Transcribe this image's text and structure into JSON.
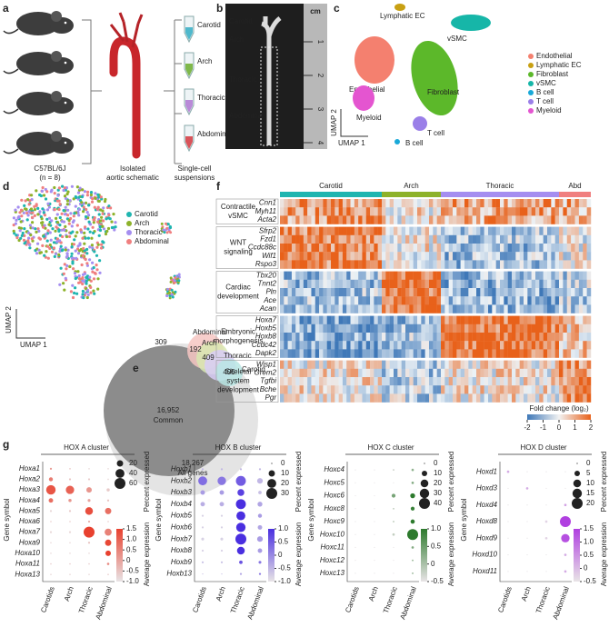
{
  "panel_a": {
    "label": "a",
    "tubes": [
      {
        "name": "Carotid",
        "color": "#4fb8cc"
      },
      {
        "name": "Arch",
        "color": "#7fb84a"
      },
      {
        "name": "Thoracic",
        "color": "#b98ad8"
      },
      {
        "name": "Abdominal",
        "color": "#d9545a"
      }
    ],
    "mouse_strain": "C57BL/6J",
    "mouse_n": "(n = 8)",
    "schematic_caption": [
      "Isolated",
      "aortic schematic"
    ],
    "suspension_caption": [
      "Single-cell",
      "suspensions"
    ]
  },
  "panel_b": {
    "label": "b",
    "regions": [
      "Carotid",
      "Arch",
      "Thoracic",
      "Abdominal"
    ],
    "ruler_unit": "cm",
    "ruler_marks": [
      1,
      2,
      3,
      4
    ]
  },
  "panel_c": {
    "label": "c",
    "x_axis": "UMAP 1",
    "y_axis": "UMAP 2",
    "clusters": [
      {
        "name": "Endothelial",
        "color": "#f4806f"
      },
      {
        "name": "Lymphatic EC",
        "color": "#c8a013"
      },
      {
        "name": "Fibroblast",
        "color": "#5cb82a"
      },
      {
        "name": "vSMC",
        "color": "#16b6a8"
      },
      {
        "name": "B cell",
        "color": "#19a9d8"
      },
      {
        "name": "T cell",
        "color": "#9a7fe8"
      },
      {
        "name": "Myeloid",
        "color": "#e455d0"
      }
    ]
  },
  "panel_d": {
    "label": "d",
    "x_axis": "UMAP 1",
    "y_axis": "UMAP 2",
    "groups": [
      {
        "name": "Carotid",
        "color": "#1fb5b0"
      },
      {
        "name": "Arch",
        "color": "#8db22a"
      },
      {
        "name": "Thoracic",
        "color": "#a58ef0"
      },
      {
        "name": "Abdominal",
        "color": "#f07f7f"
      }
    ]
  },
  "panel_e": {
    "label": "e",
    "sets": [
      {
        "name": "Abdominal",
        "count": 309,
        "color": "#f6c6c2"
      },
      {
        "name": "Arch",
        "count": 192,
        "color": "#d8e8b0"
      },
      {
        "name": "Thoracic",
        "count": 409,
        "color": "#d8cdf6"
      },
      {
        "name": "Carotid",
        "count": 405,
        "color": "#b8e6e4"
      }
    ],
    "common": {
      "count": "16,952",
      "label": "Common"
    },
    "all": {
      "count": "18,267",
      "label": "All genes"
    }
  },
  "panel_f": {
    "label": "f",
    "columns": [
      {
        "name": "Carotid",
        "color": "#1fb5b0"
      },
      {
        "name": "Arch",
        "color": "#8db22a"
      },
      {
        "name": "Thoracic",
        "color": "#a58ef0"
      },
      {
        "name": "Abd",
        "color": "#f07f7f"
      }
    ],
    "modules": [
      {
        "name": [
          "Contractile",
          "vSMC"
        ],
        "genes": [
          {
            "name": "Cnn1",
            "color": "#555555"
          },
          {
            "name": "Myh11",
            "color": "#555555"
          },
          {
            "name": "Acta2",
            "color": "#555555"
          }
        ]
      },
      {
        "name": [
          "WNT",
          "signaling"
        ],
        "genes": [
          {
            "name": "Sfrp2",
            "color": "#555555"
          },
          {
            "name": "Fzd1",
            "color": "#555555"
          },
          {
            "name": "Ccdc88c",
            "color": "#555555"
          },
          {
            "name": "Wif1",
            "color": "#e0301e"
          },
          {
            "name": "Rspo3",
            "color": "#e0301e"
          }
        ]
      },
      {
        "name": [
          "Cardiac",
          "development"
        ],
        "genes": [
          {
            "name": "Tbx20",
            "color": "#555555"
          },
          {
            "name": "Tnnt2",
            "color": "#555555"
          },
          {
            "name": "Pln",
            "color": "#555555"
          },
          {
            "name": "Ace",
            "color": "#e0301e"
          },
          {
            "name": "Acan",
            "color": "#e0301e"
          }
        ]
      },
      {
        "name": [
          "Embryonic",
          "morphogenesis"
        ],
        "genes": [
          {
            "name": "Hoxa7",
            "color": "#555555"
          },
          {
            "name": "Hoxb5",
            "color": "#555555"
          },
          {
            "name": "Hoxb8",
            "color": "#555555"
          },
          {
            "name": "Ccdc42",
            "color": "#e0301e"
          },
          {
            "name": "Dapk2",
            "color": "#e0301e"
          }
        ]
      },
      {
        "name": [
          "Skeletal",
          "system",
          "development"
        ],
        "genes": [
          {
            "name": "Wisp1",
            "color": "#555555"
          },
          {
            "name": "Grem2",
            "color": "#555555"
          },
          {
            "name": "Tgfbi",
            "color": "#555555"
          },
          {
            "name": "Bche",
            "color": "#e0301e"
          },
          {
            "name": "Pgr",
            "color": "#e0301e"
          }
        ]
      }
    ],
    "colorbar": {
      "label": "Fold change (log₂)",
      "ticks": [
        -2,
        -1,
        0,
        1,
        2
      ]
    }
  },
  "panel_g": {
    "label": "g",
    "y_axis": "Gene symbol",
    "columns": [
      "Carotids",
      "Arch",
      "Thoracic",
      "Abdominal"
    ],
    "size_title": "Percent expressed",
    "color_title": "Average expression",
    "clusters": [
      {
        "title": "HOX A cluster",
        "color": "#e8412f",
        "genes": [
          "Hoxa1",
          "Hoxa2",
          "Hoxa3",
          "Hoxa4",
          "Hoxa5",
          "Hoxa6",
          "Hoxa7",
          "Hoxa9",
          "Hoxa10",
          "Hoxa11",
          "Hoxa13"
        ],
        "percent": [
          [
            2,
            1,
            1,
            1
          ],
          [
            8,
            2,
            2,
            1
          ],
          [
            45,
            35,
            15,
            5
          ],
          [
            10,
            5,
            4,
            2
          ],
          [
            2,
            2,
            30,
            20
          ],
          [
            1,
            1,
            2,
            1
          ],
          [
            2,
            2,
            60,
            25
          ],
          [
            1,
            1,
            2,
            20
          ],
          [
            1,
            1,
            1,
            15
          ],
          [
            1,
            1,
            1,
            3
          ],
          [
            1,
            1,
            1,
            1
          ]
        ],
        "expression": [
          [
            0.2,
            -0.5,
            -0.8,
            -0.8
          ],
          [
            0.6,
            -0.5,
            -0.6,
            -0.8
          ],
          [
            1.2,
            1.0,
            0.2,
            -0.6
          ],
          [
            0.8,
            0.2,
            0,
            -0.5
          ],
          [
            -0.8,
            -0.6,
            1.3,
            0.8
          ],
          [
            -0.6,
            -0.6,
            -0.2,
            -0.6
          ],
          [
            -0.8,
            -0.8,
            1.5,
            0.5
          ],
          [
            -0.8,
            -0.8,
            -0.5,
            1.4
          ],
          [
            -0.8,
            -0.8,
            -0.8,
            1.5
          ],
          [
            -0.6,
            -0.6,
            -0.6,
            0.4
          ],
          [
            -0.8,
            -0.8,
            -0.8,
            -0.6
          ]
        ],
        "size_ticks": [
          20,
          40,
          60
        ],
        "color_ticks": [
          1.5,
          {
            "value": 1.0,
            "label": "1.0"
          },
          0.5,
          0,
          -0.5,
          {
            "value": -1.0,
            "label": "-1.0"
          }
        ]
      },
      {
        "title": "HOX B cluster",
        "color": "#4a2fe0",
        "genes": [
          "Hoxb1",
          "Hoxb2",
          "Hoxb3",
          "Hoxb4",
          "Hoxb5",
          "Hoxb6",
          "Hoxb7",
          "Hoxb8",
          "Hoxb9",
          "Hoxb13"
        ],
        "percent": [
          [
            1,
            1,
            1,
            1
          ],
          [
            20,
            18,
            25,
            8
          ],
          [
            5,
            5,
            12,
            3
          ],
          [
            5,
            5,
            25,
            6
          ],
          [
            1,
            1,
            20,
            4
          ],
          [
            1,
            1,
            22,
            5
          ],
          [
            2,
            2,
            30,
            8
          ],
          [
            1,
            1,
            15,
            5
          ],
          [
            1,
            1,
            3,
            2
          ],
          [
            0,
            0,
            1,
            1
          ]
        ],
        "expression": [
          [
            -0.5,
            -0.5,
            -0.5,
            -0.5
          ],
          [
            0.3,
            0.2,
            0.5,
            -0.5
          ],
          [
            -0.2,
            -0.2,
            0.8,
            -0.6
          ],
          [
            -0.4,
            -0.4,
            1.0,
            -0.3
          ],
          [
            -0.8,
            -0.8,
            1.0,
            -0.2
          ],
          [
            -0.8,
            -0.8,
            1.0,
            -0.3
          ],
          [
            -0.8,
            -0.8,
            1.0,
            -0.2
          ],
          [
            -0.8,
            -0.8,
            1.0,
            -0.2
          ],
          [
            -0.6,
            -0.6,
            0.6,
            0.2
          ],
          [
            -0.6,
            -0.6,
            -0.3,
            0.2
          ]
        ],
        "size_ticks": [
          0,
          10,
          20,
          30
        ],
        "color_ticks": [
          {
            "value": 1.0,
            "label": "1.0"
          },
          0.5,
          0,
          -0.5,
          {
            "value": -1.0,
            "label": "-1.0"
          }
        ]
      },
      {
        "title": "HOX C cluster",
        "color": "#2d7a2d",
        "genes": [
          "Hoxc4",
          "Hoxc5",
          "Hoxc6",
          "Hoxc8",
          "Hoxc9",
          "Hoxc10",
          "Hoxc11",
          "Hoxc12",
          "Hoxc13"
        ],
        "percent": [
          [
            0,
            0,
            1,
            2
          ],
          [
            0,
            0,
            0,
            2
          ],
          [
            0,
            0,
            5,
            8
          ],
          [
            0,
            0,
            1,
            5
          ],
          [
            0,
            0,
            1,
            6
          ],
          [
            0,
            0,
            2,
            40
          ],
          [
            0,
            0,
            0,
            2
          ],
          [
            0,
            0,
            0,
            1
          ],
          [
            0,
            0,
            0,
            1
          ]
        ],
        "expression": [
          [
            -0.5,
            -0.5,
            -0.3,
            0.2
          ],
          [
            -0.5,
            -0.5,
            -0.5,
            0.3
          ],
          [
            -0.5,
            -0.5,
            0.4,
            1.0
          ],
          [
            -0.5,
            -0.5,
            -0.2,
            0.9
          ],
          [
            -0.5,
            -0.5,
            -0.2,
            1.0
          ],
          [
            -0.5,
            -0.5,
            -0.2,
            1.0
          ],
          [
            -0.5,
            -0.5,
            -0.5,
            0.3
          ],
          [
            -0.5,
            -0.5,
            -0.5,
            0.1
          ],
          [
            -0.5,
            -0.5,
            -0.5,
            0.1
          ]
        ],
        "size_ticks": [
          0,
          10,
          20,
          30,
          40
        ],
        "color_ticks": [
          {
            "value": 1.0,
            "label": "1.0"
          },
          0.5,
          0,
          -0.5
        ]
      },
      {
        "title": "HOX D cluster",
        "color": "#b040e0",
        "genes": [
          "Hoxd1",
          "Hoxd3",
          "Hoxd4",
          "Hoxd8",
          "Hoxd9",
          "Hoxd10",
          "Hoxd11"
        ],
        "percent": [
          [
            1,
            0,
            0,
            0
          ],
          [
            0,
            1,
            0,
            0
          ],
          [
            0,
            0,
            0,
            1
          ],
          [
            0,
            0,
            1,
            20
          ],
          [
            0,
            0,
            1,
            12
          ],
          [
            0,
            0,
            0,
            1
          ],
          [
            0,
            0,
            0,
            1
          ]
        ],
        "expression": [
          [
            0.2,
            -0.5,
            -0.5,
            -0.5
          ],
          [
            -0.5,
            0.2,
            -0.5,
            -0.5
          ],
          [
            -0.5,
            -0.5,
            -0.5,
            0.3
          ],
          [
            -0.5,
            -0.5,
            -0.3,
            1.5
          ],
          [
            -0.5,
            -0.5,
            -0.3,
            1.3
          ],
          [
            -0.5,
            -0.5,
            -0.5,
            0.2
          ],
          [
            -0.5,
            -0.5,
            -0.5,
            0.2
          ]
        ],
        "size_ticks": [
          0,
          5,
          10,
          15,
          20
        ],
        "color_ticks": [
          1.5,
          {
            "value": 1.0,
            "label": "1.0"
          },
          0.5,
          0,
          -0.5
        ]
      }
    ]
  }
}
